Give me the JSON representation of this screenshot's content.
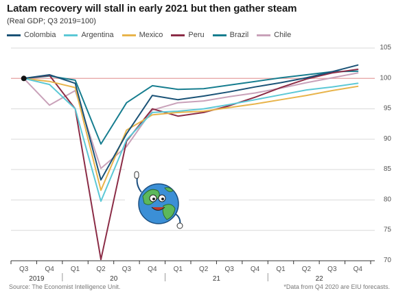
{
  "title": "Latam recovery will stall in early 2021 but then gather steam",
  "subtitle": "(Real GDP; Q3 2019=100)",
  "source": "Source: The Economist Intelligence Unit.",
  "footnote": "*Data from Q4 2020 are EIU forecasts.",
  "chart_data": {
    "type": "line",
    "title": "Latam recovery will stall in early 2021 but then gather steam",
    "subtitle": "(Real GDP; Q3 2019=100)",
    "categories": [
      "Q3",
      "Q4",
      "Q1",
      "Q2",
      "Q3",
      "Q4",
      "Q1",
      "Q2",
      "Q3",
      "Q4",
      "Q1",
      "Q2",
      "Q3",
      "Q4"
    ],
    "year_labels": [
      "2019",
      "20",
      "21",
      "22"
    ],
    "ylim": [
      70,
      105
    ],
    "yticks": [
      70,
      75,
      80,
      85,
      90,
      95,
      100,
      105
    ],
    "reference_line": 100,
    "legend_position": "top",
    "grid": true,
    "series": [
      {
        "name": "Colombia",
        "color": "#1a5276",
        "values": [
          100,
          100.6,
          99.2,
          83.3,
          90.9,
          97.2,
          96.5,
          97.1,
          97.8,
          98.6,
          99.3,
          100.1,
          101.1,
          102.2
        ]
      },
      {
        "name": "Argentina",
        "color": "#5bc8d6",
        "values": [
          100,
          99.0,
          95.0,
          79.8,
          89.9,
          94.4,
          94.6,
          95.0,
          95.7,
          96.5,
          97.3,
          98.1,
          98.6,
          99.2
        ]
      },
      {
        "name": "Mexico",
        "color": "#e8b44b",
        "values": [
          100,
          99.5,
          98.5,
          81.6,
          91.5,
          94.0,
          94.4,
          94.6,
          95.2,
          95.8,
          96.5,
          97.2,
          98.0,
          98.7
        ]
      },
      {
        "name": "Peru",
        "color": "#8b2c46",
        "values": [
          100,
          100.5,
          95.0,
          70.2,
          89.7,
          95.0,
          93.8,
          94.4,
          95.5,
          96.9,
          98.5,
          99.9,
          100.9,
          101.5
        ]
      },
      {
        "name": "Brazil",
        "color": "#167d8f",
        "values": [
          100,
          100.4,
          99.7,
          89.2,
          96.0,
          98.8,
          98.2,
          98.3,
          98.9,
          99.5,
          100.1,
          100.6,
          101.1,
          101.2
        ]
      },
      {
        "name": "Chile",
        "color": "#c9a1b9",
        "values": [
          100,
          95.6,
          98.0,
          85.2,
          88.8,
          94.8,
          96.0,
          96.3,
          97.0,
          97.6,
          98.4,
          99.3,
          100.1,
          100.9
        ]
      }
    ]
  }
}
